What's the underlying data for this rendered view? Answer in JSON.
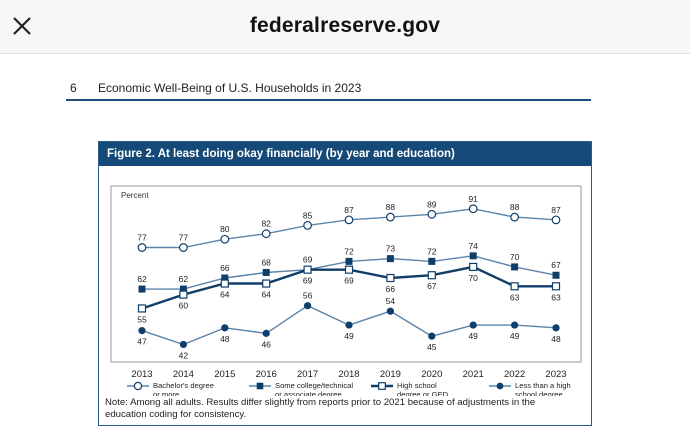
{
  "browser": {
    "site_title": "federalreserve.gov",
    "close_icon": "close-icon"
  },
  "document": {
    "page_number": "6",
    "running_title": "Economic Well-Being of U.S. Households in 2023"
  },
  "figure": {
    "title": "Figure 2. At least doing okay financially (by year and education)",
    "note": "Note: Among all adults. Results differ slightly from reports prior to 2021 because of adjustments in the education coding for consistency.",
    "colors": {
      "dark": "#0f3e6b",
      "light": "#5b84ab",
      "header": "#154a78"
    }
  },
  "chart_data": {
    "type": "line",
    "title": "Figure 2. At least doing okay financially (by year and education)",
    "ylabel": "Percent",
    "xlabel": "",
    "ylim": [
      40,
      92
    ],
    "grid": false,
    "legend_position": "bottom",
    "x": [
      "2013",
      "2014",
      "2015",
      "2016",
      "2017",
      "2018",
      "2019",
      "2020",
      "2021",
      "2022",
      "2023"
    ],
    "series": [
      {
        "name": "Bachelor's degree or more",
        "legend": [
          "Bachelor's degree",
          "or more"
        ],
        "marker": "circle-open",
        "line": "light",
        "label_pos": "above",
        "values": [
          77,
          77,
          80,
          82,
          85,
          87,
          88,
          89,
          91,
          88,
          87
        ]
      },
      {
        "name": "Some college/technical or associate degree",
        "legend": [
          "Some college/technical",
          "or associate degree"
        ],
        "marker": "square-filled",
        "line": "light",
        "label_pos": "above",
        "values": [
          62,
          62,
          66,
          68,
          69,
          72,
          73,
          72,
          74,
          70,
          67
        ]
      },
      {
        "name": "High school degree or GED",
        "legend": [
          "High school",
          "degree or GED"
        ],
        "marker": "square-open",
        "line": "dark",
        "label_pos": "below",
        "values": [
          55,
          60,
          64,
          64,
          69,
          69,
          66,
          67,
          70,
          63,
          63
        ]
      },
      {
        "name": "Less than a high school degree",
        "legend": [
          "Less than a high",
          "school degree"
        ],
        "marker": "circle-filled",
        "line": "light",
        "label_pos": "mixed",
        "values": [
          47,
          42,
          48,
          46,
          56,
          49,
          54,
          45,
          49,
          49,
          48
        ]
      }
    ]
  }
}
